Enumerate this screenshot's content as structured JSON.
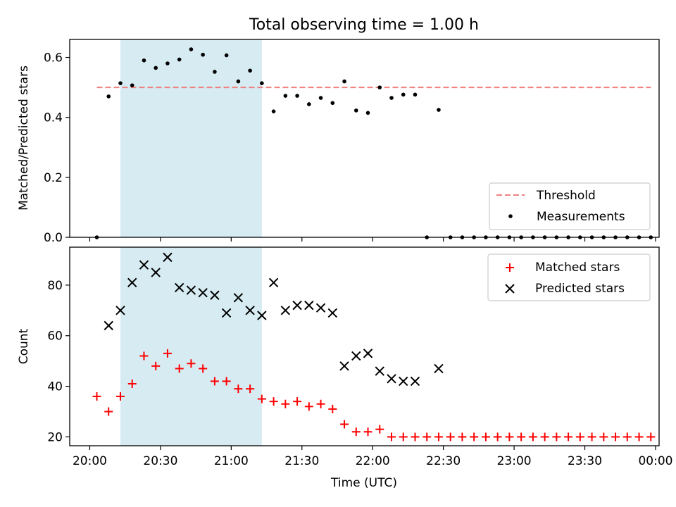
{
  "figure": {
    "title": "Total observing time = 1.00 h",
    "xlabel": "Time (UTC)",
    "colors": {
      "threshold": "#f08080",
      "shade": "#add8e6",
      "matched": "#ff0000",
      "predicted": "#000000",
      "measurements": "#000000"
    }
  },
  "chart_data": [
    {
      "type": "scatter",
      "ylabel": "Matched/Predicted stars",
      "ylim": [
        0,
        0.66
      ],
      "yticks": [
        "0.0",
        "0.2",
        "0.4",
        "0.6"
      ],
      "shaded_interval": [
        "20:13",
        "21:13"
      ],
      "threshold": 0.5,
      "threshold_range": [
        "20:03",
        "23:58"
      ],
      "legend_position": "lower-right",
      "legend": [
        "Threshold",
        "Measurements"
      ],
      "series": [
        {
          "name": "Measurements",
          "x": [
            "20:03",
            "20:08",
            "20:13",
            "20:18",
            "20:23",
            "20:28",
            "20:33",
            "20:38",
            "20:43",
            "20:48",
            "20:53",
            "20:58",
            "21:03",
            "21:08",
            "21:13",
            "21:18",
            "21:23",
            "21:28",
            "21:33",
            "21:38",
            "21:43",
            "21:48",
            "21:53",
            "21:58",
            "22:03",
            "22:08",
            "22:13",
            "22:18",
            "22:23",
            "22:28",
            "22:33",
            "22:38",
            "22:43",
            "22:48",
            "22:53",
            "22:58",
            "23:03",
            "23:08",
            "23:13",
            "23:18",
            "23:23",
            "23:28",
            "23:33",
            "23:38",
            "23:43",
            "23:48",
            "23:53",
            "23:58"
          ],
          "values": [
            0.0,
            0.47,
            0.514,
            0.507,
            0.59,
            0.565,
            0.58,
            0.593,
            0.627,
            0.609,
            0.552,
            0.607,
            0.52,
            0.556,
            0.514,
            0.42,
            0.472,
            0.472,
            0.444,
            0.465,
            0.448,
            0.52,
            0.423,
            0.415,
            0.5,
            0.465,
            0.476,
            0.476,
            0.0,
            0.425,
            0.0,
            0.0,
            0.0,
            0.0,
            0.0,
            0.0,
            0.0,
            0.0,
            0.0,
            0.0,
            0.0,
            0.0,
            0.0,
            0.0,
            0.0,
            0.0,
            0.0,
            0.0
          ]
        }
      ]
    },
    {
      "type": "scatter",
      "ylabel": "Count",
      "ylim": [
        16.5,
        95
      ],
      "yticks": [
        "20",
        "40",
        "60",
        "80"
      ],
      "xticks": [
        "20:00",
        "20:30",
        "21:00",
        "21:30",
        "22:00",
        "22:30",
        "23:00",
        "23:30",
        "00:00"
      ],
      "shaded_interval": [
        "20:13",
        "21:13"
      ],
      "legend_position": "upper-right",
      "legend": [
        "Matched stars",
        "Predicted stars"
      ],
      "series": [
        {
          "name": "Matched stars",
          "x": [
            "20:03",
            "20:08",
            "20:13",
            "20:18",
            "20:23",
            "20:28",
            "20:33",
            "20:38",
            "20:43",
            "20:48",
            "20:53",
            "20:58",
            "21:03",
            "21:08",
            "21:13",
            "21:18",
            "21:23",
            "21:28",
            "21:33",
            "21:38",
            "21:43",
            "21:48",
            "21:53",
            "21:58",
            "22:03",
            "22:08",
            "22:13",
            "22:18",
            "22:23",
            "22:28",
            "22:33",
            "22:38",
            "22:43",
            "22:48",
            "22:53",
            "22:58",
            "23:03",
            "23:08",
            "23:13",
            "23:18",
            "23:23",
            "23:28",
            "23:33",
            "23:38",
            "23:43",
            "23:48",
            "23:53",
            "23:58"
          ],
          "values": [
            36,
            30,
            36,
            41,
            52,
            48,
            53,
            47,
            49,
            47,
            42,
            42,
            39,
            39,
            35,
            34,
            33,
            34,
            32,
            33,
            31,
            25,
            22,
            22,
            23,
            20,
            20,
            20,
            20,
            20,
            20,
            20,
            20,
            20,
            20,
            20,
            20,
            20,
            20,
            20,
            20,
            20,
            20,
            20,
            20,
            20,
            20,
            20
          ]
        },
        {
          "name": "Predicted stars",
          "x": [
            "20:08",
            "20:13",
            "20:18",
            "20:23",
            "20:28",
            "20:33",
            "20:38",
            "20:43",
            "20:48",
            "20:53",
            "20:58",
            "21:03",
            "21:08",
            "21:13",
            "21:18",
            "21:23",
            "21:28",
            "21:33",
            "21:38",
            "21:43",
            "21:48",
            "21:53",
            "21:58",
            "22:03",
            "22:08",
            "22:13",
            "22:18",
            "22:28"
          ],
          "values": [
            64,
            70,
            81,
            88,
            85,
            91,
            79,
            78,
            77,
            76,
            69,
            75,
            70,
            68,
            81,
            70,
            72,
            72,
            71,
            69,
            48,
            52,
            53,
            46,
            43,
            42,
            42,
            47
          ]
        }
      ]
    }
  ]
}
